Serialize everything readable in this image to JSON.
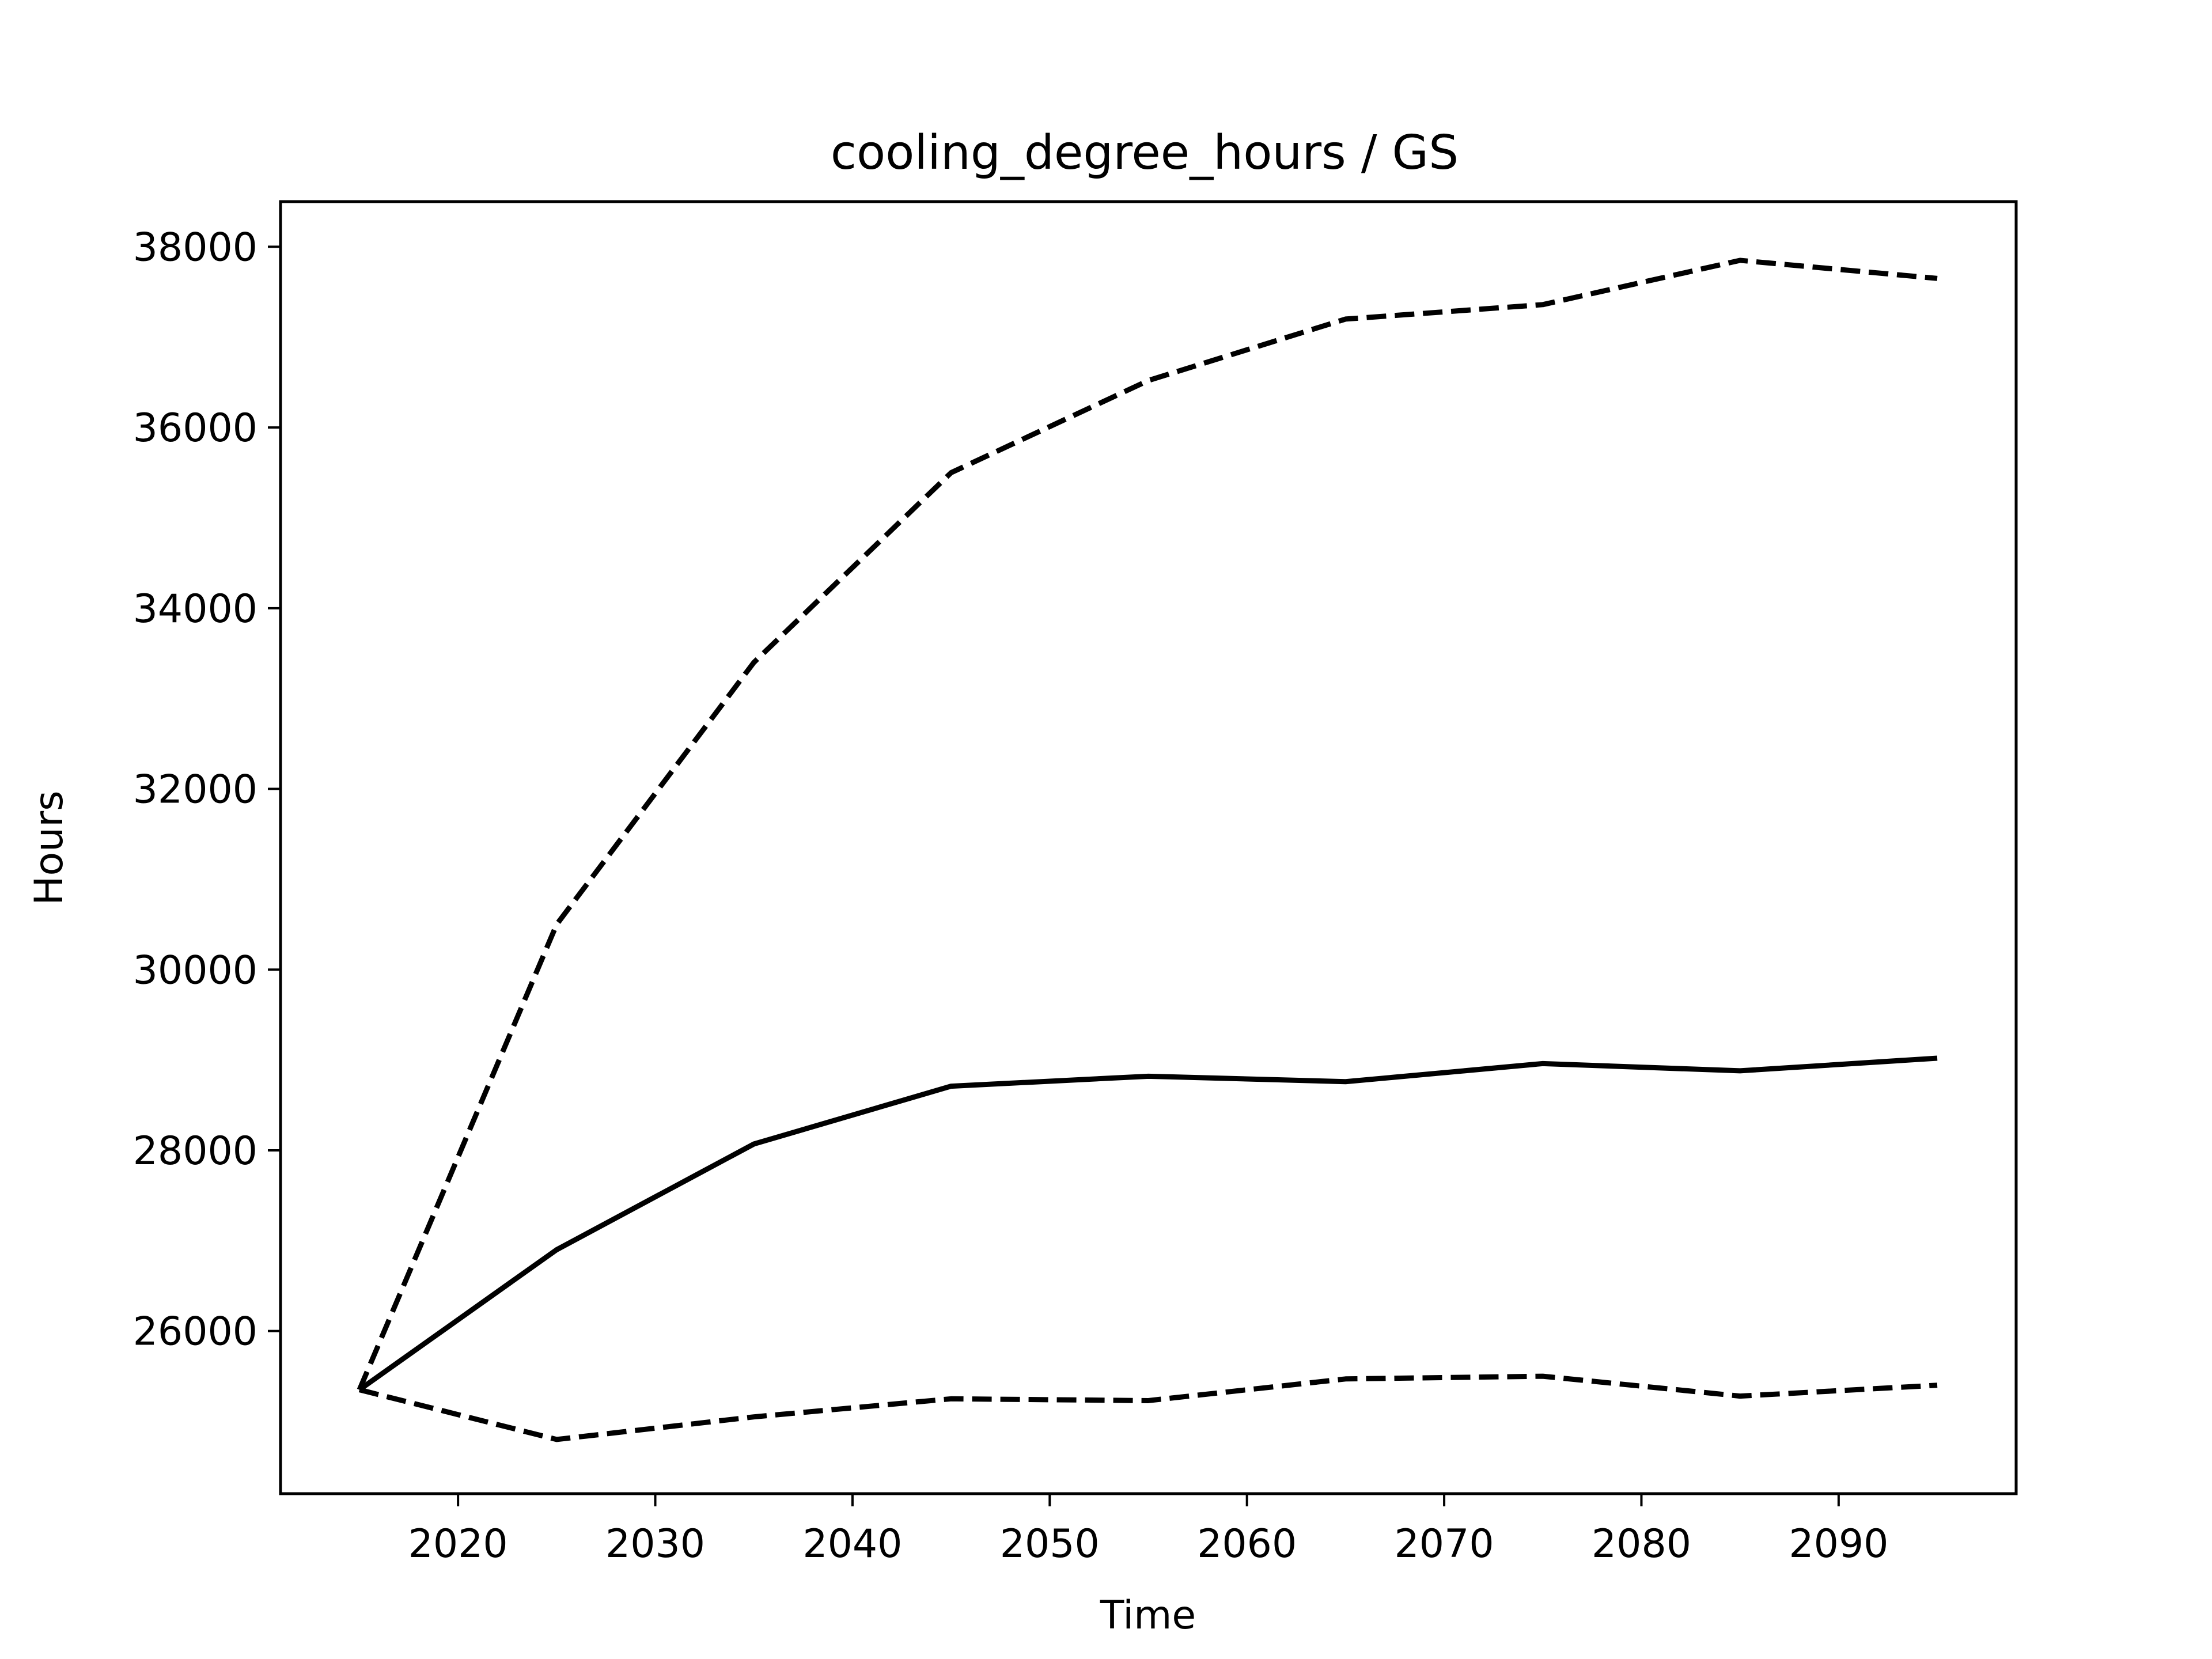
{
  "chart_data": {
    "type": "line",
    "title": "cooling_degree_hours / GS",
    "xlabel": "Time",
    "ylabel": "Hours",
    "xlim": [
      2011,
      2099
    ],
    "ylim": [
      24200,
      38500
    ],
    "x_ticks": [
      2020,
      2030,
      2040,
      2050,
      2060,
      2070,
      2080,
      2090
    ],
    "y_ticks": [
      26000,
      28000,
      30000,
      32000,
      34000,
      36000,
      38000
    ],
    "grid": false,
    "x": [
      2015,
      2025,
      2035,
      2045,
      2055,
      2065,
      2075,
      2085,
      2095
    ],
    "series": [
      {
        "style": "dashed",
        "color": "#000000",
        "values": [
          25350,
          30500,
          33400,
          35500,
          36520,
          37200,
          37360,
          37850,
          37650
        ]
      },
      {
        "style": "solid",
        "color": "#000000",
        "values": [
          25350,
          26900,
          28070,
          28710,
          28820,
          28760,
          28960,
          28880,
          29020
        ]
      },
      {
        "style": "dashed",
        "color": "#000000",
        "values": [
          25350,
          24800,
          25050,
          25250,
          25230,
          25470,
          25500,
          25280,
          25400
        ]
      }
    ]
  }
}
